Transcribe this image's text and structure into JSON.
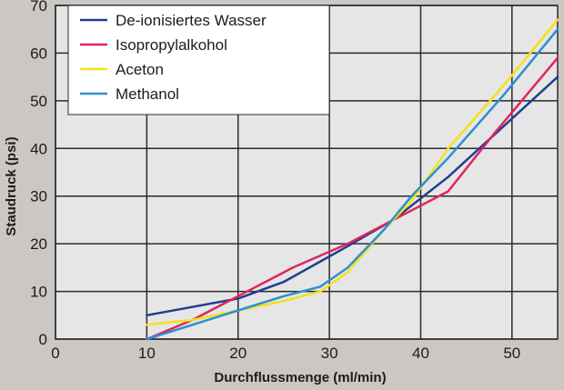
{
  "chart_data": {
    "type": "line",
    "title": "",
    "xlabel": "Durchflussmenge (ml/min)",
    "ylabel": "Staudruck (psi)",
    "xlim": [
      0,
      55
    ],
    "ylim": [
      0,
      70
    ],
    "xticks": [
      0,
      10,
      20,
      30,
      40,
      50
    ],
    "yticks": [
      0,
      10,
      20,
      30,
      40,
      50,
      60,
      70
    ],
    "grid": true,
    "legend_position": "top-left",
    "plot_background": "#e6e6e6",
    "page_background": "#cbc7c2",
    "series": [
      {
        "name": "De-ionisiertes Wasser",
        "color": "#1f3f8f",
        "points": [
          [
            10,
            5
          ],
          [
            20,
            8.5
          ],
          [
            25,
            12
          ],
          [
            32,
            19.5
          ],
          [
            37,
            25
          ],
          [
            43,
            34
          ],
          [
            55,
            55
          ]
        ]
      },
      {
        "name": "Isopropylalkohol",
        "color": "#e0245e",
        "points": [
          [
            10,
            0
          ],
          [
            15,
            4
          ],
          [
            20,
            9
          ],
          [
            26,
            15
          ],
          [
            32,
            20
          ],
          [
            38,
            26
          ],
          [
            43,
            31
          ],
          [
            48,
            43
          ],
          [
            55,
            59
          ]
        ]
      },
      {
        "name": "Aceton",
        "color": "#f2e21a",
        "points": [
          [
            10,
            3
          ],
          [
            15,
            4
          ],
          [
            20,
            6
          ],
          [
            25,
            8
          ],
          [
            29,
            10
          ],
          [
            32,
            14
          ],
          [
            36,
            23
          ],
          [
            39,
            29
          ],
          [
            43,
            40
          ],
          [
            49,
            53
          ],
          [
            55,
            67
          ]
        ]
      },
      {
        "name": "Methanol",
        "color": "#2f8fd0",
        "points": [
          [
            10,
            0
          ],
          [
            15,
            3
          ],
          [
            20,
            6
          ],
          [
            25,
            9
          ],
          [
            29,
            11
          ],
          [
            32,
            15
          ],
          [
            36,
            23
          ],
          [
            39,
            30
          ],
          [
            43,
            38
          ],
          [
            49,
            51
          ],
          [
            55,
            65
          ]
        ]
      }
    ]
  }
}
